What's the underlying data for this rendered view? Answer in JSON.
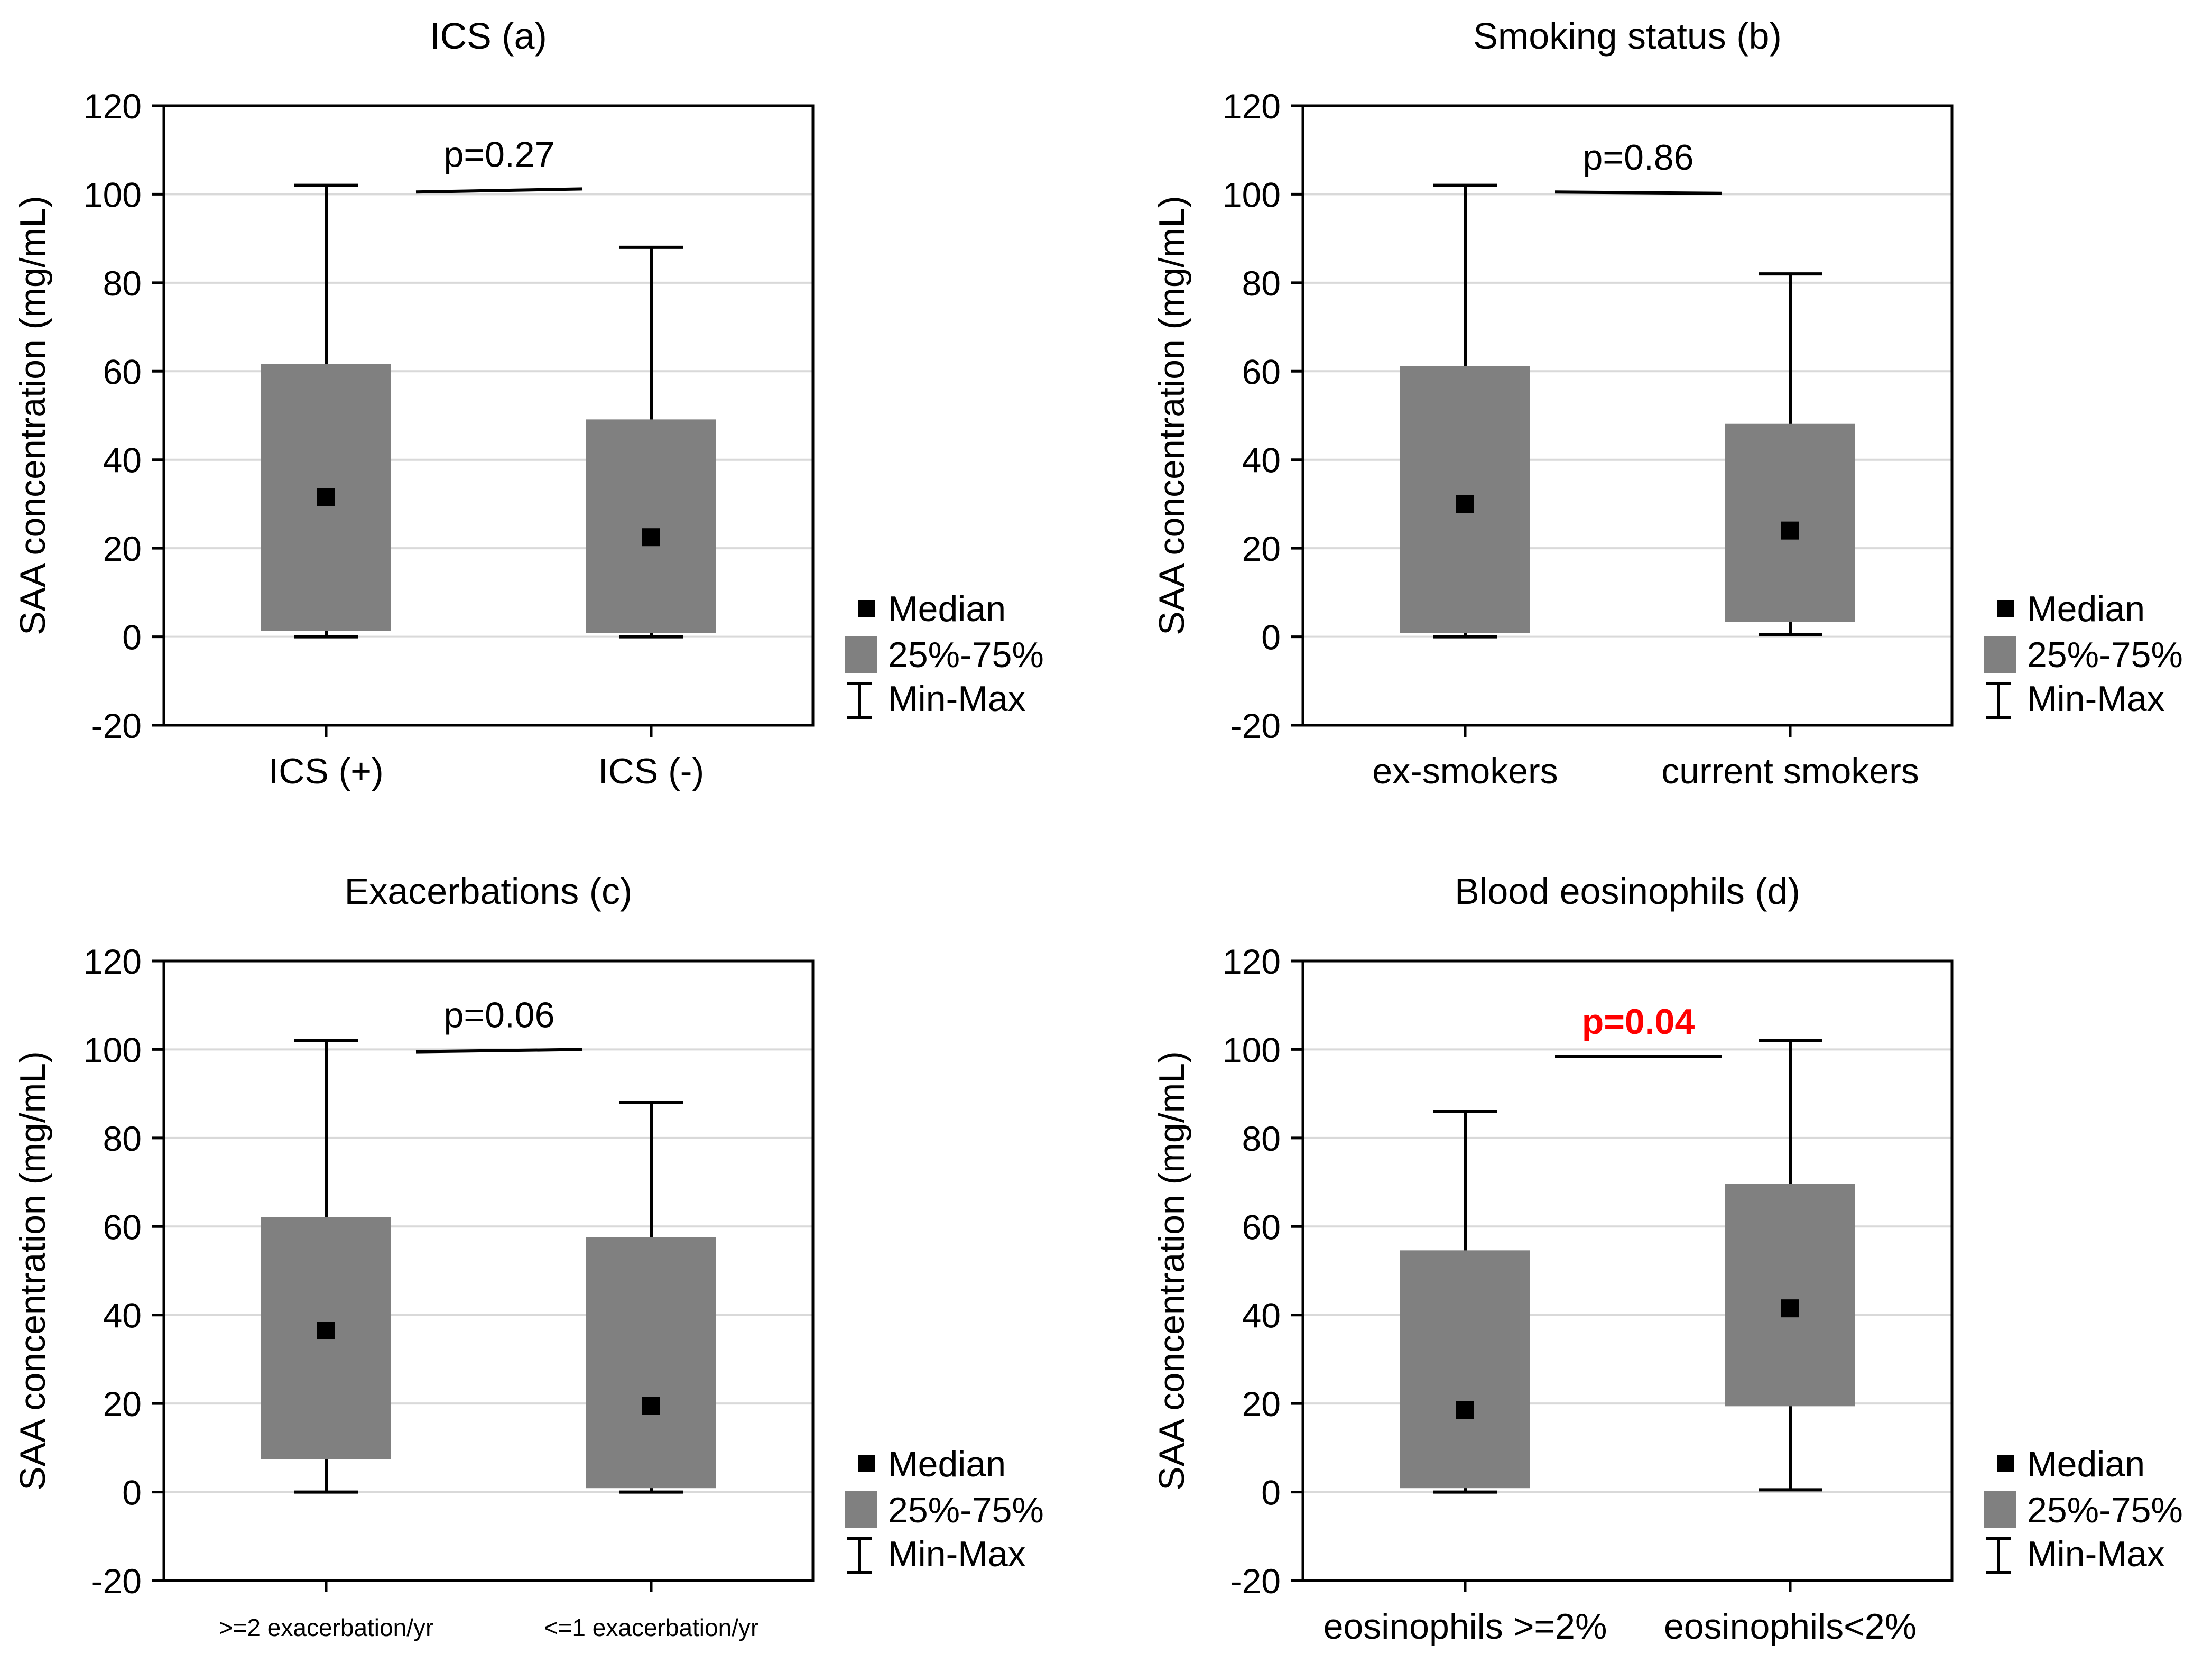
{
  "colors": {
    "box_fill": "#808080",
    "median": "#000000",
    "whisker": "#000000",
    "grid": "#d9d9d9",
    "axis": "#000000",
    "text": "#000000",
    "significant": "#ff0000"
  },
  "legend": {
    "median_label": "Median",
    "box_label": "25%-75%",
    "whisker_label": "Min-Max"
  },
  "chart_data": [
    {
      "type": "box",
      "title": "ICS (a)",
      "ylabel": "SAA concentration (mg/mL)",
      "ylim": [
        -20,
        120
      ],
      "yticks": [
        -20,
        0,
        20,
        40,
        60,
        80,
        100,
        120
      ],
      "grid": true,
      "legend_position": "right",
      "categories": [
        "ICS (+)",
        "ICS (-)"
      ],
      "median": [
        31.5,
        22.5
      ],
      "q1": [
        1.5,
        1.0
      ],
      "q3": [
        61.5,
        49.0
      ],
      "min": [
        0.0,
        0.0
      ],
      "max": [
        102.0,
        88.0
      ],
      "p_value": "p=0.27",
      "p_significant": false,
      "bracket_y": [
        100.5,
        101.2
      ]
    },
    {
      "type": "box",
      "title": "Smoking status (b)",
      "ylabel": "SAA concentration (mg/mL)",
      "ylim": [
        -20,
        120
      ],
      "yticks": [
        -20,
        0,
        20,
        40,
        60,
        80,
        100,
        120
      ],
      "grid": true,
      "legend_position": "right",
      "categories": [
        "ex-smokers",
        "current smokers"
      ],
      "median": [
        30.0,
        24.0
      ],
      "q1": [
        1.0,
        3.5
      ],
      "q3": [
        61.0,
        48.0
      ],
      "min": [
        0.0,
        0.5
      ],
      "max": [
        102.0,
        82.0
      ],
      "p_value": "p=0.86",
      "p_significant": false,
      "bracket_y": [
        100.5,
        100.2
      ]
    },
    {
      "type": "box",
      "title": "Exacerbations (c)",
      "ylabel": "SAA concentration (mg/mL)",
      "ylim": [
        -20,
        120
      ],
      "yticks": [
        -20,
        0,
        20,
        40,
        60,
        80,
        100,
        120
      ],
      "grid": true,
      "legend_position": "right",
      "categories": [
        ">=2 exacerbation/yr",
        "<=1 exacerbation/yr"
      ],
      "median": [
        36.5,
        19.5
      ],
      "q1": [
        7.5,
        1.0
      ],
      "q3": [
        62.0,
        57.5
      ],
      "min": [
        0.0,
        0.0
      ],
      "max": [
        102.0,
        88.0
      ],
      "p_value": "p=0.06",
      "p_significant": false,
      "bracket_y": [
        99.5,
        100.0
      ]
    },
    {
      "type": "box",
      "title": "Blood eosinophils (d)",
      "ylabel": "SAA concentration (mg/mL)",
      "ylim": [
        -20,
        120
      ],
      "yticks": [
        -20,
        0,
        20,
        40,
        60,
        80,
        100,
        120
      ],
      "grid": true,
      "legend_position": "right",
      "categories": [
        "eosinophils >=2%",
        "eosinophils<2%"
      ],
      "median": [
        18.5,
        41.5
      ],
      "q1": [
        1.0,
        19.5
      ],
      "q3": [
        54.5,
        69.5
      ],
      "min": [
        0.0,
        0.5
      ],
      "max": [
        86.0,
        102.0
      ],
      "p_value": "p=0.04",
      "p_significant": true,
      "bracket_y": [
        98.5,
        98.5
      ]
    }
  ]
}
